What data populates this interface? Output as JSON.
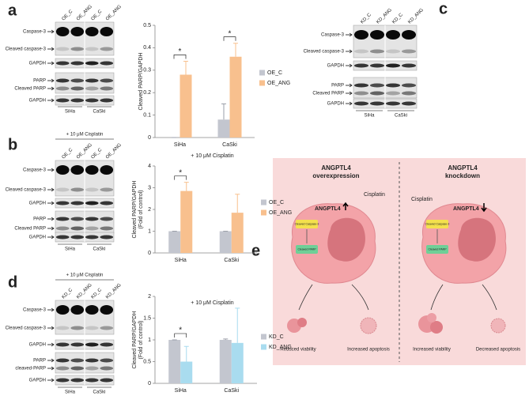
{
  "panel_labels": [
    "a",
    "b",
    "c",
    "d",
    "e"
  ],
  "blots": [
    {
      "lanes": [
        "OE_C",
        "OE_ANG",
        "OE_C",
        "OE_ANG"
      ],
      "rows": [
        "Caspase-3",
        "Cleaved caspase-3",
        "GAPDH",
        "PARP",
        "Cleaved PARP",
        "GAPDH"
      ],
      "cells": [
        "SiHa",
        "CaSki"
      ]
    },
    {
      "treatment": "+ 10 μM Cisplatin",
      "lanes": [
        "OE_C",
        "OE_ANG",
        "OE_C",
        "OE_ANG"
      ],
      "rows": [
        "Caspase-3",
        "Cleaved caspase-3",
        "GAPDH",
        "PARP",
        "Cleaved PARP",
        "GAPDH"
      ],
      "cells": [
        "SiHa",
        "CaSki"
      ]
    },
    {
      "lanes": [
        "KD_C",
        "KD_ANG",
        "KD_C",
        "KD_ANG"
      ],
      "rows": [
        "Caspase-3",
        "Cleaved caspase-3",
        "GAPDH",
        "PARP",
        "Cleaved PARP",
        "GAPDH"
      ],
      "cells": [
        "SiHa",
        "CaSki"
      ]
    },
    {
      "treatment": "+ 10 μM Cisplatin",
      "lanes": [
        "KD_C",
        "KD_ANG",
        "KD_C",
        "KD_ANG"
      ],
      "rows": [
        "Caspase-3",
        "Cleaved caspase-3",
        "GAPDH",
        "PARP",
        "cleaved-PARP",
        "GAPDH"
      ],
      "cells": [
        "SiHa",
        "CaSki"
      ]
    }
  ],
  "chart_data": [
    {
      "type": "bar",
      "y_label": "Cleaved PARP/GAPDH",
      "categories": [
        "SiHa",
        "CaSki"
      ],
      "series": [
        {
          "name": "OE_C",
          "color": "#c3c6cf",
          "values": [
            0,
            0.08
          ],
          "errors": [
            0,
            0.07
          ]
        },
        {
          "name": "OE_ANG",
          "color": "#f8c08e",
          "values": [
            0.28,
            0.36
          ],
          "errors": [
            0.06,
            0.06
          ]
        }
      ],
      "ylim": [
        0,
        0.5
      ],
      "yticks": [
        0,
        0.1,
        0.2,
        0.3,
        0.4,
        0.5
      ],
      "annotations": [
        "*",
        "*"
      ]
    },
    {
      "type": "bar",
      "subtitle": "+ 10 μM Cisplatin",
      "y_label": [
        "Cleaved PARP/GAPDH",
        "(Fold of control)"
      ],
      "categories": [
        "SiHa",
        "CaSki"
      ],
      "series": [
        {
          "name": "OE_C",
          "color": "#c3c6cf",
          "values": [
            1,
            1
          ],
          "errors": [
            0,
            0
          ]
        },
        {
          "name": "OE_ANG",
          "color": "#f8c08e",
          "values": [
            2.85,
            1.85
          ],
          "errors": [
            0.4,
            0.85
          ]
        }
      ],
      "ylim": [
        0,
        4
      ],
      "yticks": [
        0,
        1,
        2,
        3,
        4
      ],
      "annotations": [
        "*"
      ]
    },
    {
      "type": "bar",
      "subtitle": "+ 10 μM Cisplatin",
      "y_label": [
        "Cleaved PARP/GAPDH",
        "(Fold of control)"
      ],
      "categories": [
        "SiHa",
        "CaSki"
      ],
      "series": [
        {
          "name": "KD_C",
          "color": "#c3c6cf",
          "values": [
            1,
            1
          ],
          "errors": [
            0,
            0.02
          ]
        },
        {
          "name": "KD_ANG",
          "color": "#a9dcef",
          "values": [
            0.5,
            0.93
          ],
          "errors": [
            0.35,
            0.8
          ]
        }
      ],
      "ylim": [
        0,
        2
      ],
      "yticks": [
        0,
        0.5,
        1,
        1.5,
        2
      ],
      "annotations": [
        "*"
      ]
    }
  ],
  "diagram": {
    "left_title": [
      "ANGPTL4",
      "overexpression"
    ],
    "right_title": [
      "ANGPTL4",
      "knockdown"
    ],
    "left_drug": "Cisplatin",
    "right_drug": "Cisplatin",
    "left_gene": "ANGPTL4",
    "right_gene": "ANGPTL4",
    "left_caspase": "Cleaved Caspase-3",
    "right_caspase": "Cleaved Caspase-3",
    "left_parp": "Cleaved PARP",
    "right_parp": "Cleaved PARP",
    "outcomes": [
      "Reduced viability",
      "Increased apoptosis",
      "Increased viability",
      "Decreased apoptosis"
    ]
  }
}
